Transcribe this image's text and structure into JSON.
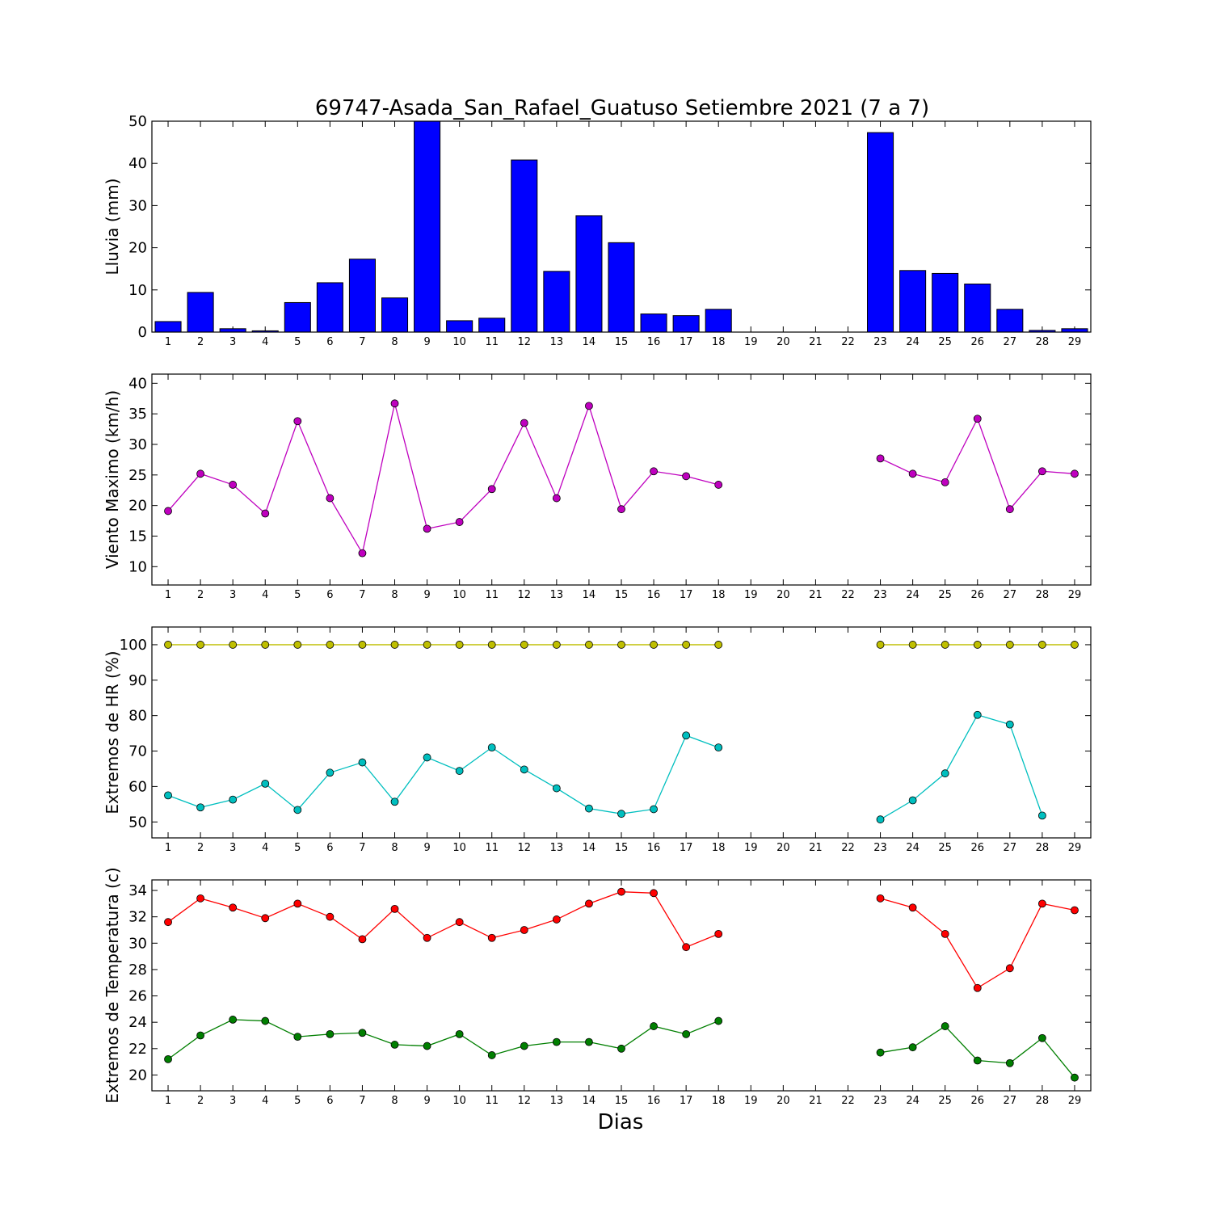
{
  "title": "69747-Asada_San_Rafael_Guatuso Setiembre 2021  (7 a 7)",
  "xlabel": "Dias",
  "chart_data": [
    {
      "type": "bar",
      "ylabel": "Lluvia (mm)",
      "ylim": [
        0,
        50
      ],
      "yticks": [
        0,
        10,
        20,
        30,
        40,
        50
      ],
      "categories": [
        1,
        2,
        3,
        4,
        5,
        6,
        7,
        8,
        9,
        10,
        11,
        12,
        13,
        14,
        15,
        16,
        17,
        18,
        19,
        20,
        21,
        22,
        23,
        24,
        25,
        26,
        27,
        28,
        29
      ],
      "values": [
        2.5,
        9.4,
        0.8,
        0.3,
        7.0,
        11.7,
        17.3,
        8.1,
        50.0,
        2.7,
        3.3,
        40.8,
        14.4,
        27.6,
        21.2,
        4.3,
        3.9,
        5.4,
        null,
        null,
        null,
        null,
        47.3,
        14.6,
        13.9,
        11.4,
        5.4,
        0.4,
        0.8
      ],
      "color": "#0000ff"
    },
    {
      "type": "line",
      "ylabel": "Viento Maximo (km/h)",
      "ylim": [
        7,
        41.5
      ],
      "yticks": [
        10,
        15,
        20,
        25,
        30,
        35,
        40
      ],
      "x": [
        1,
        2,
        3,
        4,
        5,
        6,
        7,
        8,
        9,
        10,
        11,
        12,
        13,
        14,
        15,
        16,
        17,
        18,
        19,
        20,
        21,
        22,
        23,
        24,
        25,
        26,
        27,
        28,
        29
      ],
      "series": [
        {
          "values": [
            19.1,
            25.2,
            23.4,
            18.7,
            33.8,
            21.2,
            12.2,
            36.7,
            16.2,
            17.3,
            22.7,
            33.5,
            21.2,
            36.3,
            19.4,
            25.6,
            24.8,
            23.4,
            null,
            null,
            null,
            null,
            27.7,
            25.2,
            23.8,
            34.2,
            19.4,
            25.6,
            25.2
          ],
          "color": "#bf00bf"
        }
      ]
    },
    {
      "type": "line",
      "ylabel": "Extremos de HR (%)",
      "ylim": [
        45.5,
        105
      ],
      "yticks": [
        50,
        60,
        70,
        80,
        90,
        100
      ],
      "x": [
        1,
        2,
        3,
        4,
        5,
        6,
        7,
        8,
        9,
        10,
        11,
        12,
        13,
        14,
        15,
        16,
        17,
        18,
        19,
        20,
        21,
        22,
        23,
        24,
        25,
        26,
        27,
        28,
        29
      ],
      "series": [
        {
          "values": [
            100,
            100,
            100,
            100,
            100,
            100,
            100,
            100,
            100,
            100,
            100,
            100,
            100,
            100,
            100,
            100,
            100,
            100,
            null,
            null,
            null,
            null,
            100,
            100,
            100,
            100,
            100,
            100,
            100
          ],
          "color": "#bfbf00"
        },
        {
          "values": [
            57.5,
            54.1,
            56.3,
            60.8,
            53.4,
            63.9,
            66.8,
            55.7,
            68.2,
            64.4,
            71.0,
            64.8,
            59.5,
            53.8,
            52.3,
            53.6,
            74.4,
            71.0,
            null,
            null,
            null,
            null,
            50.7,
            56.1,
            63.7,
            80.2,
            77.5,
            51.8,
            null
          ],
          "color": "#00bfbf"
        }
      ]
    },
    {
      "type": "line",
      "ylabel": "Extremos de Temperatura (c)",
      "ylim": [
        18.8,
        34.8
      ],
      "yticks": [
        20,
        22,
        24,
        26,
        28,
        30,
        32,
        34
      ],
      "x": [
        1,
        2,
        3,
        4,
        5,
        6,
        7,
        8,
        9,
        10,
        11,
        12,
        13,
        14,
        15,
        16,
        17,
        18,
        19,
        20,
        21,
        22,
        23,
        24,
        25,
        26,
        27,
        28,
        29
      ],
      "series": [
        {
          "values": [
            31.6,
            33.4,
            32.7,
            31.9,
            33.0,
            32.0,
            30.3,
            32.6,
            30.4,
            31.6,
            30.4,
            31.0,
            31.8,
            33.0,
            33.9,
            33.8,
            29.7,
            30.7,
            null,
            null,
            null,
            null,
            33.4,
            32.7,
            30.7,
            26.6,
            28.1,
            33.0,
            32.5
          ],
          "color": "#ff0000"
        },
        {
          "values": [
            21.2,
            23.0,
            24.2,
            24.1,
            22.9,
            23.1,
            23.2,
            22.3,
            22.2,
            23.1,
            21.5,
            22.2,
            22.5,
            22.5,
            22.0,
            23.7,
            23.1,
            24.1,
            null,
            null,
            null,
            null,
            21.7,
            22.1,
            23.7,
            21.1,
            20.9,
            22.8,
            19.8
          ],
          "color": "#007f00"
        }
      ]
    }
  ]
}
